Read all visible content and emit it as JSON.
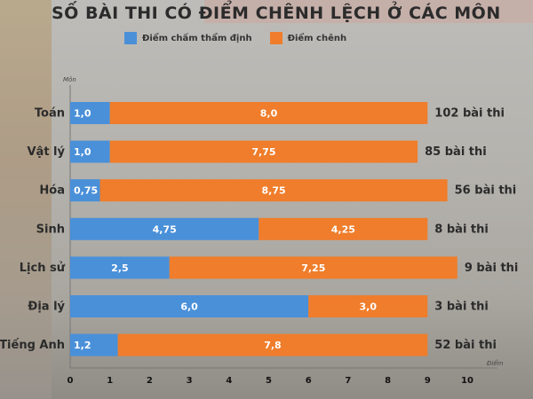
{
  "chart_data": {
    "type": "bar",
    "orientation": "horizontal",
    "stacked": true,
    "title": "SỐ BÀI THI CÓ ĐIỂM CHÊNH LỆCH Ở CÁC MÔN",
    "ylabel": "Môn",
    "xlabel": "Điểm",
    "xlim": [
      0,
      10
    ],
    "xticks": [
      "0",
      "1",
      "2",
      "3",
      "4",
      "5",
      "6",
      "7",
      "8",
      "9",
      "10"
    ],
    "legend_position": "top",
    "categories": [
      "Toán",
      "Vật lý",
      "Hóa",
      "Sinh",
      "Lịch sử",
      "Địa lý",
      "Tiếng Anh"
    ],
    "series": [
      {
        "name": "Điểm chấm thẩm định",
        "color": "#4a90d9",
        "values": [
          1.0,
          1.0,
          0.75,
          4.75,
          2.5,
          6.0,
          1.2
        ],
        "labels": [
          "1,0",
          "1,0",
          "0,75",
          "4,75",
          "2,5",
          "6,0",
          "1,2"
        ]
      },
      {
        "name": "Điểm chênh",
        "color": "#ef7d2b",
        "values": [
          8.0,
          7.75,
          8.75,
          4.25,
          7.25,
          3.0,
          7.8
        ],
        "labels": [
          "8,0",
          "7,75",
          "8,75",
          "4,25",
          "7,25",
          "3,0",
          "7,8"
        ]
      }
    ],
    "annotations": [
      "102 bài thi",
      "85 bài thi",
      "56 bài thi",
      "8 bài thi",
      "9 bài thi",
      "3 bài thi",
      "52 bài thi"
    ]
  }
}
